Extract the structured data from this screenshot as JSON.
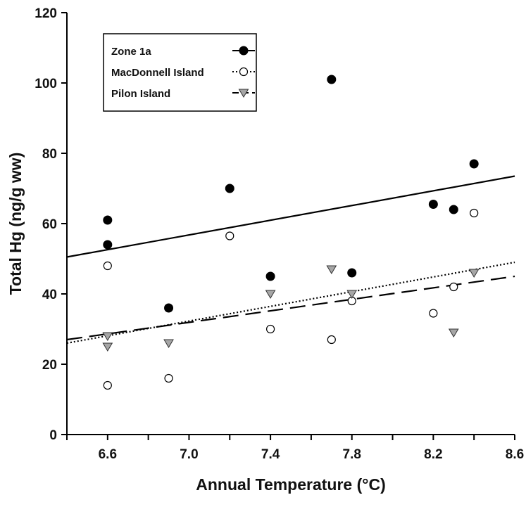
{
  "chart_data": {
    "type": "scatter",
    "xlabel": "Annual Temperature (°C)",
    "ylabel": "Total Hg (ng/g ww)",
    "xlim": [
      6.4,
      8.6
    ],
    "ylim": [
      0,
      120
    ],
    "xticks": [
      6.6,
      7.0,
      7.4,
      7.8,
      8.2,
      8.6
    ],
    "xtick_labels": [
      "6.6",
      "7.0",
      "7.4",
      "7.8",
      "8.2",
      "8.6"
    ],
    "yticks": [
      0,
      20,
      40,
      60,
      80,
      100,
      120
    ],
    "ytick_labels": [
      "0",
      "20",
      "40",
      "60",
      "80",
      "100",
      "120"
    ],
    "grid": false,
    "legend": "top-left",
    "series": [
      {
        "name": "Zone 1a",
        "marker": "filled-circle",
        "line": "solid",
        "color": "#000000",
        "x": [
          6.6,
          6.6,
          6.9,
          7.2,
          7.4,
          7.7,
          7.8,
          8.2,
          8.3,
          8.4
        ],
        "y": [
          61,
          54,
          36,
          70,
          45,
          101,
          46,
          65.5,
          64,
          77
        ],
        "fit": [
          [
            6.4,
            50.5
          ],
          [
            8.6,
            73.5
          ]
        ]
      },
      {
        "name": "MacDonnell Island",
        "marker": "open-circle",
        "line": "dotted",
        "color": "#000000",
        "x": [
          6.6,
          6.6,
          6.9,
          7.2,
          7.4,
          7.7,
          7.8,
          8.2,
          8.3,
          8.4
        ],
        "y": [
          48,
          14,
          16,
          56.5,
          30,
          27,
          38,
          34.5,
          42,
          63
        ],
        "fit": [
          [
            6.4,
            26
          ],
          [
            8.6,
            49
          ]
        ]
      },
      {
        "name": "Pilon Island",
        "marker": "gray-triangle-down",
        "line": "dashed",
        "color": "#999999",
        "x": [
          6.6,
          6.6,
          6.9,
          7.4,
          7.7,
          7.8,
          8.3,
          8.4
        ],
        "y": [
          28,
          25,
          26,
          40,
          47,
          40,
          29,
          46
        ],
        "fit": [
          [
            6.4,
            27
          ],
          [
            8.6,
            45
          ]
        ]
      }
    ]
  }
}
